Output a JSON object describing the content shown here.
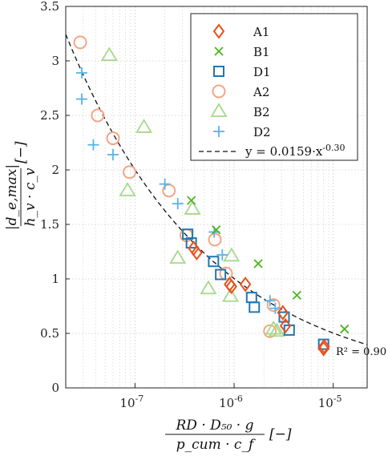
{
  "chart_data": {
    "type": "scatter",
    "xscale": "log",
    "xlim": [
      2e-08,
      2.2e-05
    ],
    "ylim": [
      0,
      3.5
    ],
    "grid": true,
    "legend_position": "top-right",
    "xticks": [
      1e-07,
      1e-06,
      1e-05
    ],
    "xtick_labels": [
      {
        "base": "10",
        "exp": "-7"
      },
      {
        "base": "10",
        "exp": "-6"
      },
      {
        "base": "10",
        "exp": "-5"
      }
    ],
    "yticks": [
      0,
      0.5,
      1,
      1.5,
      2,
      2.5,
      3,
      3.5
    ],
    "ytick_labels": [
      "0",
      "0.5",
      "1",
      "1.5",
      "2",
      "2.5",
      "3",
      "3.5"
    ],
    "xlabel_parts": {
      "numerator": "RD · D₅₀ · g",
      "denominator": "p_cum · c_f",
      "unit": "[−]"
    },
    "ylabel_parts": {
      "numerator": "|d_e,max|",
      "denominator": "h_v · c_v",
      "unit": "[−]"
    },
    "series": [
      {
        "name": "A1",
        "marker": "diamond",
        "color": "#e8501a",
        "points": [
          [
            3.9e-07,
            1.28
          ],
          [
            4.2e-07,
            1.24
          ],
          [
            9e-07,
            0.95
          ],
          [
            9.4e-07,
            0.93
          ],
          [
            1.3e-06,
            0.95
          ],
          [
            3.1e-06,
            0.69
          ],
          [
            3.3e-06,
            0.57
          ],
          [
            8e-06,
            0.36
          ],
          [
            8.1e-06,
            0.38
          ]
        ]
      },
      {
        "name": "B1",
        "marker": "x",
        "color": "#4db320",
        "points": [
          [
            3.7e-07,
            1.72
          ],
          [
            6.6e-07,
            1.45
          ],
          [
            1.75e-06,
            1.14
          ],
          [
            4.3e-06,
            0.85
          ],
          [
            1.3e-05,
            0.54
          ]
        ]
      },
      {
        "name": "D1",
        "marker": "square",
        "color": "#1f77b4",
        "points": [
          [
            3.4e-07,
            1.41
          ],
          [
            3.7e-07,
            1.33
          ],
          [
            6.2e-07,
            1.16
          ],
          [
            7.3e-07,
            1.04
          ],
          [
            1.5e-06,
            0.83
          ],
          [
            1.6e-06,
            0.74
          ],
          [
            3.2e-06,
            0.65
          ],
          [
            3.6e-06,
            0.53
          ],
          [
            8e-06,
            0.4
          ]
        ]
      },
      {
        "name": "A2",
        "marker": "circle",
        "color": "#f4a582",
        "points": [
          [
            2.8e-08,
            3.17
          ],
          [
            4.2e-08,
            2.5
          ],
          [
            6e-08,
            2.29
          ],
          [
            8.8e-08,
            1.98
          ],
          [
            2.2e-07,
            1.81
          ],
          [
            3.3e-07,
            1.4
          ],
          [
            6.4e-07,
            1.36
          ],
          [
            8.3e-07,
            1.05
          ],
          [
            2.3e-06,
            0.52
          ],
          [
            2.5e-06,
            0.76
          ]
        ]
      },
      {
        "name": "B2",
        "marker": "triangle",
        "color": "#a6d88a",
        "points": [
          [
            5.5e-08,
            3.05
          ],
          [
            1.23e-07,
            2.39
          ],
          [
            8.4e-08,
            1.81
          ],
          [
            3.8e-07,
            1.64
          ],
          [
            2.7e-07,
            1.19
          ],
          [
            5.5e-07,
            0.91
          ],
          [
            9.2e-07,
            0.84
          ],
          [
            9.4e-07,
            1.21
          ],
          [
            2.5e-06,
            0.54
          ],
          [
            2.7e-06,
            0.52
          ]
        ]
      },
      {
        "name": "D2",
        "marker": "plus",
        "color": "#56b4e9",
        "points": [
          [
            2.9e-08,
            2.89
          ],
          [
            2.9e-08,
            2.65
          ],
          [
            3.8e-08,
            2.23
          ],
          [
            6e-08,
            2.14
          ],
          [
            2e-07,
            1.87
          ],
          [
            2.7e-07,
            1.69
          ],
          [
            6.3e-07,
            1.43
          ],
          [
            7.6e-07,
            1.22
          ],
          [
            2.3e-06,
            0.8
          ],
          [
            2.6e-06,
            0.73
          ]
        ]
      }
    ],
    "fit": {
      "label_text": "y = 0.0159·x",
      "label_exp": "-0.30",
      "coefficient": 0.0159,
      "exponent": -0.3,
      "r2_label": "R² = 0.90"
    }
  }
}
